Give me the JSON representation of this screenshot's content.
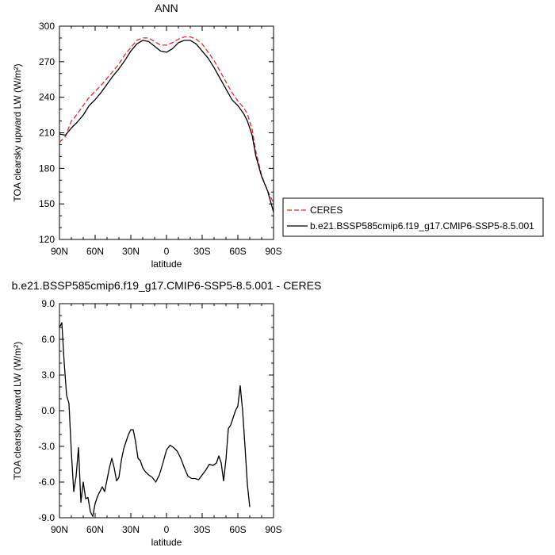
{
  "chart_data": [
    {
      "type": "line",
      "title": "ANN",
      "xlabel": "latitude",
      "ylabel": "TOA clearsky upward LW (W/m²)",
      "xlim": [
        -90,
        90
      ],
      "ylim": [
        120,
        300
      ],
      "x_ticks": [
        -90,
        -60,
        -30,
        0,
        30,
        60,
        90
      ],
      "x_tick_labels": [
        "90N",
        "60N",
        "30N",
        "0",
        "30S",
        "60S",
        "90S"
      ],
      "y_ticks": [
        120,
        150,
        180,
        210,
        240,
        270,
        300
      ],
      "y_tick_labels": [
        "120",
        "150",
        "180",
        "210",
        "240",
        "270",
        "300"
      ],
      "legend_position": "right",
      "series": [
        {
          "name": "CERES",
          "color": "#e8272b",
          "dash": "dashed",
          "points": [
            [
              -90,
              202
            ],
            [
              -85,
              207
            ],
            [
              -80,
              220
            ],
            [
              -78,
              222
            ],
            [
              -75,
              226
            ],
            [
              -70,
              233
            ],
            [
              -65,
              240
            ],
            [
              -60,
              245
            ],
            [
              -55,
              250
            ],
            [
              -50,
              256
            ],
            [
              -45,
              262
            ],
            [
              -40,
              268
            ],
            [
              -35,
              276
            ],
            [
              -30,
              282
            ],
            [
              -25,
              288
            ],
            [
              -20,
              290
            ],
            [
              -15,
              290
            ],
            [
              -10,
              287
            ],
            [
              -5,
              284
            ],
            [
              0,
              284
            ],
            [
              5,
              286
            ],
            [
              10,
              289
            ],
            [
              15,
              291
            ],
            [
              20,
              291
            ],
            [
              25,
              289
            ],
            [
              30,
              285
            ],
            [
              35,
              278
            ],
            [
              40,
              271
            ],
            [
              45,
              262
            ],
            [
              50,
              253
            ],
            [
              55,
              244
            ],
            [
              60,
              237
            ],
            [
              65,
              231
            ],
            [
              68,
              226
            ],
            [
              72,
              213
            ],
            [
              75,
              195
            ],
            [
              80,
              174
            ],
            [
              85,
              161
            ],
            [
              90,
              151
            ]
          ]
        },
        {
          "name": "b.e21.BSSP585cmip6.f19_g17.CMIP6-SSP5-8.5.001",
          "color": "#000000",
          "dash": "solid",
          "points": [
            [
              -90,
              209
            ],
            [
              -85,
              208
            ],
            [
              -80,
              214
            ],
            [
              -75,
              219
            ],
            [
              -70,
              225
            ],
            [
              -65,
              233
            ],
            [
              -60,
              238
            ],
            [
              -55,
              244
            ],
            [
              -50,
              251
            ],
            [
              -45,
              258
            ],
            [
              -40,
              264
            ],
            [
              -35,
              271
            ],
            [
              -30,
              279
            ],
            [
              -25,
              285
            ],
            [
              -20,
              288
            ],
            [
              -15,
              287
            ],
            [
              -10,
              283
            ],
            [
              -5,
              279
            ],
            [
              0,
              278
            ],
            [
              5,
              281
            ],
            [
              10,
              286
            ],
            [
              15,
              288
            ],
            [
              20,
              288
            ],
            [
              25,
              285
            ],
            [
              30,
              279
            ],
            [
              35,
              273
            ],
            [
              40,
              265
            ],
            [
              45,
              256
            ],
            [
              50,
              247
            ],
            [
              55,
              238
            ],
            [
              60,
              233
            ],
            [
              65,
              226
            ],
            [
              68,
              220
            ],
            [
              72,
              208
            ],
            [
              75,
              191
            ],
            [
              80,
              173
            ],
            [
              85,
              161
            ],
            [
              90,
              143
            ]
          ]
        }
      ]
    },
    {
      "type": "line",
      "title": "b.e21.BSSP585cmip6.f19_g17.CMIP6-SSP5-8.5.001 - CERES",
      "xlabel": "latitude",
      "ylabel": "TOA clearsky upward LW (W/m²)",
      "xlim": [
        -90,
        90
      ],
      "ylim": [
        -9,
        9
      ],
      "x_ticks": [
        -90,
        -60,
        -30,
        0,
        30,
        60,
        90
      ],
      "x_tick_labels": [
        "90N",
        "60N",
        "30N",
        "0",
        "30S",
        "60S",
        "90S"
      ],
      "y_ticks": [
        -9,
        -6,
        -3,
        0,
        3,
        6,
        9
      ],
      "y_tick_labels": [
        "-9.0",
        "-6.0",
        "-3.0",
        "0.0",
        "3.0",
        "6.0",
        "9.0"
      ],
      "series": [
        {
          "color": "#000000",
          "dash": "solid",
          "points": [
            [
              -90,
              7.0
            ],
            [
              -88,
              7.4
            ],
            [
              -86,
              4.0
            ],
            [
              -84,
              1.3
            ],
            [
              -82,
              0.6
            ],
            [
              -80,
              -3.5
            ],
            [
              -78,
              -6.8
            ],
            [
              -76,
              -5.5
            ],
            [
              -74,
              -3.1
            ],
            [
              -72,
              -7.7
            ],
            [
              -70,
              -6.0
            ],
            [
              -68,
              -7.4
            ],
            [
              -66,
              -7.3
            ],
            [
              -64,
              -8.5
            ],
            [
              -62,
              -8.9
            ],
            [
              -60,
              -7.8
            ],
            [
              -58,
              -7.2
            ],
            [
              -56,
              -6.8
            ],
            [
              -54,
              -6.4
            ],
            [
              -52,
              -6.8
            ],
            [
              -50,
              -5.8
            ],
            [
              -48,
              -4.8
            ],
            [
              -46,
              -4.0
            ],
            [
              -44,
              -4.8
            ],
            [
              -42,
              -5.9
            ],
            [
              -40,
              -5.6
            ],
            [
              -38,
              -4.2
            ],
            [
              -36,
              -3.2
            ],
            [
              -34,
              -2.6
            ],
            [
              -32,
              -2.0
            ],
            [
              -30,
              -1.6
            ],
            [
              -28,
              -1.6
            ],
            [
              -26,
              -2.6
            ],
            [
              -24,
              -4.0
            ],
            [
              -22,
              -4.2
            ],
            [
              -20,
              -4.8
            ],
            [
              -18,
              -5.1
            ],
            [
              -15,
              -5.4
            ],
            [
              -12,
              -5.6
            ],
            [
              -9,
              -6.0
            ],
            [
              -6,
              -5.4
            ],
            [
              -3,
              -4.4
            ],
            [
              0,
              -3.3
            ],
            [
              3,
              -2.9
            ],
            [
              6,
              -3.1
            ],
            [
              9,
              -3.4
            ],
            [
              12,
              -4.0
            ],
            [
              15,
              -4.8
            ],
            [
              18,
              -5.5
            ],
            [
              21,
              -5.7
            ],
            [
              24,
              -5.7
            ],
            [
              27,
              -5.8
            ],
            [
              30,
              -5.4
            ],
            [
              33,
              -5.0
            ],
            [
              36,
              -4.5
            ],
            [
              39,
              -4.6
            ],
            [
              42,
              -4.4
            ],
            [
              44,
              -3.8
            ],
            [
              46,
              -4.4
            ],
            [
              48,
              -5.9
            ],
            [
              50,
              -4.1
            ],
            [
              52,
              -1.5
            ],
            [
              54,
              -1.2
            ],
            [
              56,
              -0.6
            ],
            [
              58,
              0.0
            ],
            [
              60,
              0.4
            ],
            [
              62,
              2.1
            ],
            [
              64,
              0.0
            ],
            [
              66,
              -3.0
            ],
            [
              68,
              -6.2
            ],
            [
              70,
              -8.1
            ]
          ]
        }
      ]
    }
  ],
  "legend": {
    "ceres_label": "CERES",
    "model_label": "b.e21.BSSP585cmip6.f19_g17.CMIP6-SSP5-8.5.001"
  }
}
